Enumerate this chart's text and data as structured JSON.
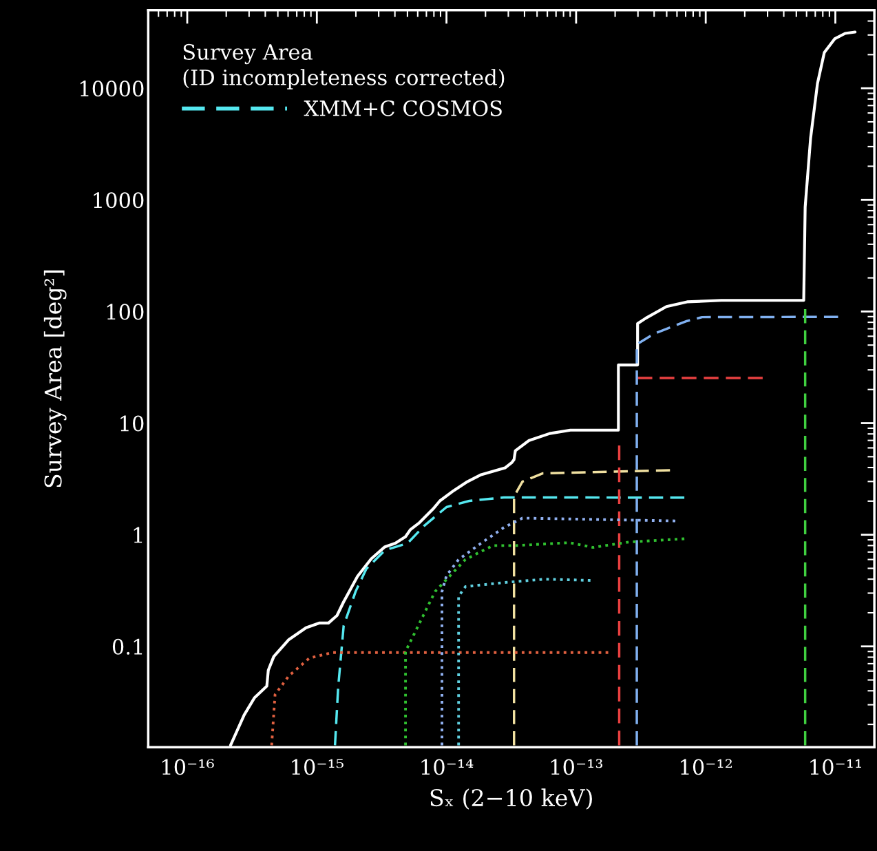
{
  "chart_data": {
    "type": "line",
    "xlabel": "Sₓ (2−10 keV)",
    "ylabel": "Survey Area [deg²]",
    "legend_title": "Survey Area\n(ID incompleteness corrected)",
    "legend": "top left",
    "log": "xy",
    "xlim": [
      5e-17,
      2e-11
    ],
    "ylim": [
      0.0125,
      50000
    ],
    "xticks": [
      {
        "value": 1e-16,
        "label": "10⁻¹⁶"
      },
      {
        "value": 1e-15,
        "label": "10⁻¹⁵"
      },
      {
        "value": 1e-14,
        "label": "10⁻¹⁴"
      },
      {
        "value": 1e-13,
        "label": "10⁻¹³"
      },
      {
        "value": 1e-12,
        "label": "10⁻¹²"
      },
      {
        "value": 1e-11,
        "label": "10⁻¹¹"
      }
    ],
    "yticks": [
      0.1,
      1,
      10,
      100,
      1000,
      10000
    ],
    "series": [
      {
        "color": "#ffffff",
        "line_style": "solid",
        "x": [
          2.16e-16,
          2.75e-16,
          3.3e-16,
          4.11e-16,
          4.22e-16,
          4.65e-16,
          6.08e-16,
          8.25e-16,
          1.05e-15,
          1.23e-15,
          1.43e-15,
          1.61e-15,
          2.06e-15,
          2.63e-15,
          3.35e-15,
          4.03e-15,
          4.83e-15,
          5.26e-15,
          6.17e-15,
          7.87e-15,
          8.89e-15,
          1.14e-14,
          1.45e-14,
          1.85e-14,
          2.83e-14,
          3.2e-14,
          3.32e-14,
          3.4e-14,
          4.34e-14,
          6.26e-14,
          9.03e-14,
          2.12e-13,
          2.12e-13,
          2.98e-13,
          2.98e-13,
          3.45e-13,
          4.98e-13,
          7.18e-13,
          1.32e-12,
          5.7e-12,
          5.85e-12,
          6.44e-12,
          7.28e-12,
          8.22e-12,
          9.88e-12,
          1.19e-11,
          1.42e-11
        ],
        "values": [
          0.013,
          0.0243,
          0.0346,
          0.044,
          0.061,
          0.081,
          0.115,
          0.147,
          0.162,
          0.162,
          0.189,
          0.251,
          0.424,
          0.61,
          0.78,
          0.84,
          0.96,
          1.11,
          1.28,
          1.7,
          2.01,
          2.49,
          2.99,
          3.45,
          3.97,
          4.45,
          4.71,
          5.66,
          7.0,
          8.07,
          8.65,
          8.65,
          33.2,
          33.2,
          77.8,
          87.1,
          110.7,
          122,
          125.8,
          125.8,
          863,
          3560,
          11040,
          20900,
          27700,
          31000,
          31900
        ]
      },
      {
        "name": "XMM+C COSMOS",
        "color": "#55e8f0",
        "line_style": "dashed",
        "x": [
          1.38e-15,
          1.46e-15,
          1.61e-15,
          1.99e-15,
          2.41e-15,
          3.35e-15,
          5.01e-15,
          6.72e-15,
          1e-14,
          1.5e-14,
          2.77e-14,
          6.84e-13
        ],
        "values": [
          0.013,
          0.0428,
          0.153,
          0.31,
          0.496,
          0.726,
          0.84,
          1.2,
          1.77,
          2.01,
          2.16,
          2.15
        ]
      },
      {
        "color": "#f0e0a0",
        "line_style": "dashed",
        "x": [
          3.32e-14,
          3.32e-14,
          3.85e-14,
          5.55e-14,
          5.3e-13
        ],
        "values": [
          0.013,
          2.2,
          2.99,
          3.55,
          3.78
        ]
      },
      {
        "color": "#e84040",
        "line_style": "dashed",
        "x": [
          2.15e-13,
          2.15e-13
        ],
        "values": [
          6.3,
          0.013
        ]
      },
      {
        "color": "#e84040",
        "line_style": "dashed",
        "x": [
          2.98e-13,
          2.75e-12
        ],
        "values": [
          25.4,
          25.4
        ]
      },
      {
        "color": "#80b0f0",
        "line_style": "dashed",
        "x": [
          2.94e-13,
          2.94e-13,
          4.05e-13,
          7.18e-13,
          9.38e-13,
          1.05e-11
        ],
        "values": [
          0.013,
          50.8,
          63.7,
          82.2,
          89,
          89.5
        ]
      },
      {
        "color": "#40d040",
        "line_style": "dashed",
        "x": [
          5.85e-12,
          5.85e-12
        ],
        "values": [
          0.013,
          105
        ]
      },
      {
        "color": "#e06040",
        "line_style": "dotted",
        "x": [
          4.48e-16,
          4.76e-16,
          6.08e-16,
          8.77e-16,
          1.31e-15,
          1.77e-13
        ],
        "values": [
          0.013,
          0.037,
          0.0544,
          0.0786,
          0.088,
          0.088
        ]
      },
      {
        "color": "#30c030",
        "line_style": "dotted",
        "x": [
          4.83e-15,
          4.83e-15,
          8.17e-15,
          1.4e-14,
          2.28e-14,
          3.44e-14,
          8.91e-14,
          1.35e-13,
          2.55e-13,
          6.84e-13
        ],
        "values": [
          0.013,
          0.09,
          0.31,
          0.6,
          0.8,
          0.8,
          0.85,
          0.77,
          0.86,
          0.92
        ]
      },
      {
        "color": "#90b0f0",
        "line_style": "dotted",
        "x": [
          9.23e-15,
          9.23e-15,
          1e-14,
          1.24e-14,
          1.85e-14,
          2.77e-14,
          3.85e-14,
          5.83e-13
        ],
        "values": [
          0.013,
          0.31,
          0.43,
          0.6,
          0.84,
          1.16,
          1.41,
          1.33
        ]
      },
      {
        "color": "#60d0e0",
        "line_style": "dotted",
        "x": [
          1.24e-14,
          1.24e-14,
          1.4e-14,
          2.77e-14,
          5.75e-14,
          1.29e-13
        ],
        "values": [
          0.013,
          0.281,
          0.343,
          0.373,
          0.4,
          0.39
        ]
      }
    ]
  }
}
